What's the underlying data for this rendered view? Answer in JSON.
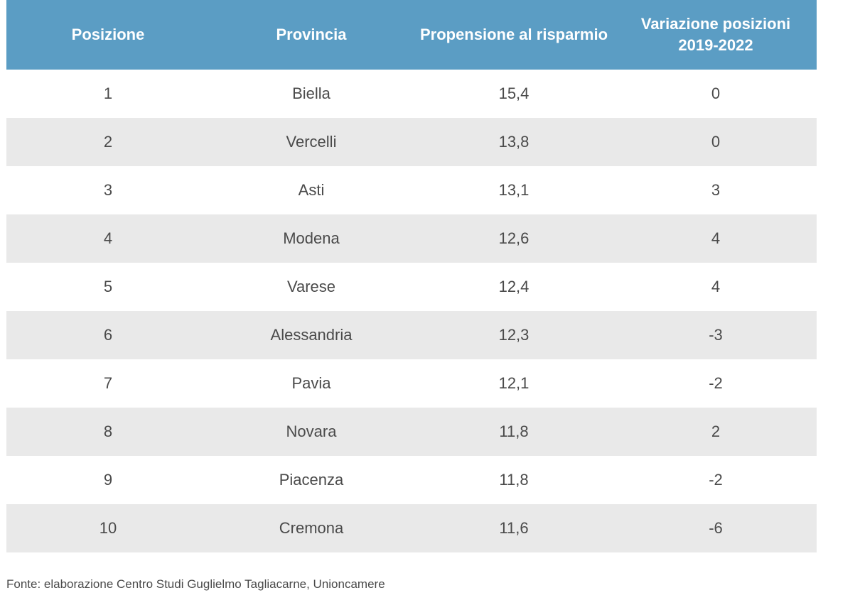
{
  "chart_data": {
    "type": "table",
    "columns": [
      "Posizione",
      "Provincia",
      "Propensione al risparmio",
      "Variazione posizioni 2019-2022"
    ],
    "header_colors": {
      "background": "#5b9dc4",
      "text": "#ffffff"
    },
    "row_stripe_color": "#e9e9e9",
    "rows": [
      [
        "1",
        "Biella",
        "15,4",
        "0"
      ],
      [
        "2",
        "Vercelli",
        "13,8",
        "0"
      ],
      [
        "3",
        "Asti",
        "13,1",
        "3"
      ],
      [
        "4",
        "Modena",
        "12,6",
        "4"
      ],
      [
        "5",
        "Varese",
        "12,4",
        "4"
      ],
      [
        "6",
        "Alessandria",
        "12,3",
        "-3"
      ],
      [
        "7",
        "Pavia",
        "12,1",
        "-2"
      ],
      [
        "8",
        "Novara",
        "11,8",
        "2"
      ],
      [
        "9",
        "Piacenza",
        "11,8",
        "-2"
      ],
      [
        "10",
        "Cremona",
        "11,6",
        "-6"
      ]
    ]
  },
  "source_note": "Fonte: elaborazione Centro Studi Guglielmo Tagliacarne, Unioncamere"
}
